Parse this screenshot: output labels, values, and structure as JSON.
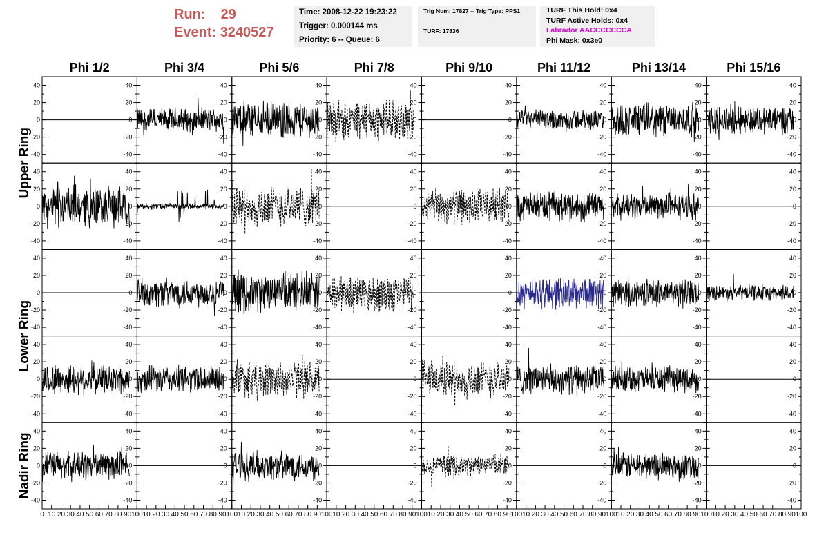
{
  "header": {
    "run_label": "Run:",
    "run_value": "29",
    "event_label": "Event:",
    "event_value": "3240527",
    "time": "Time: 2008-12-22 19:23:22",
    "trigger": "Trigger: 0.000144 ms",
    "priority": "Priority: 6 -- Queue: 6",
    "trig_num": "Trig Num: 17827 -- Trig Type: PPS1",
    "turf": "TURF: 17836",
    "turf_this_hold": "TURF This Hold: 0x4",
    "turf_active_holds": "TURF Active Holds: 0x4",
    "labrador": "Labrador AACCCCCCCA",
    "phi_mask": "Phi Mask: 0x3e0"
  },
  "colors": {
    "run_text": "#c85a5a",
    "labrador_text": "#e000e0",
    "highlight_trace": "#2a2a8c",
    "info_background": "#f0f0f0"
  },
  "chart_data": {
    "type": "line",
    "columns": [
      "Phi 1/2",
      "Phi 3/4",
      "Phi 5/6",
      "Phi 7/8",
      "Phi 9/10",
      "Phi 11/12",
      "Phi 13/14",
      "Phi 15/16"
    ],
    "row_labels": [
      {
        "text": "Upper Ring"
      },
      {
        "text": "Lower Ring"
      },
      {
        "text": "Nadir Ring"
      }
    ],
    "ylim": [
      -50,
      50
    ],
    "y_ticks": [
      -40,
      -20,
      0,
      20,
      40
    ],
    "xlim": [
      0,
      100
    ],
    "x_ticks": [
      0,
      10,
      20,
      30,
      40,
      50,
      60,
      70,
      80,
      90,
      100
    ],
    "grid": false,
    "panels": [
      [
        {
          "style": "flat"
        },
        {
          "style": "solid",
          "amp": 13
        },
        {
          "style": "solid",
          "amp": 20
        },
        {
          "style": "dashed",
          "amp": 22
        },
        {
          "style": "flat"
        },
        {
          "style": "solid",
          "amp": 11
        },
        {
          "style": "solid",
          "amp": 18
        },
        {
          "style": "solid",
          "amp": 16
        }
      ],
      [
        {
          "style": "solid",
          "amp": 22
        },
        {
          "style": "solid",
          "amp": 3
        },
        {
          "style": "dashed",
          "amp": 22
        },
        {
          "style": "flat"
        },
        {
          "style": "dashed",
          "amp": 19
        },
        {
          "style": "solid",
          "amp": 16
        },
        {
          "style": "solid",
          "amp": 14
        },
        {
          "style": "flat"
        }
      ],
      [
        {
          "style": "flat"
        },
        {
          "style": "solid",
          "amp": 16
        },
        {
          "style": "solid",
          "amp": 21
        },
        {
          "style": "dashed",
          "amp": 21
        },
        {
          "style": "flat"
        },
        {
          "style": "solid",
          "amp": 18,
          "highlight": true
        },
        {
          "style": "solid",
          "amp": 15
        },
        {
          "style": "solid",
          "amp": 9
        }
      ],
      [
        {
          "style": "solid",
          "amp": 17
        },
        {
          "style": "solid",
          "amp": 15
        },
        {
          "style": "dashed",
          "amp": 20
        },
        {
          "style": "flat"
        },
        {
          "style": "dashed",
          "amp": 20
        },
        {
          "style": "solid",
          "amp": 16
        },
        {
          "style": "solid",
          "amp": 14
        },
        {
          "style": "flat"
        }
      ],
      [
        {
          "style": "solid",
          "amp": 16
        },
        {
          "style": "flat"
        },
        {
          "style": "solid",
          "amp": 16
        },
        {
          "style": "flat"
        },
        {
          "style": "dashed",
          "amp": 11
        },
        {
          "style": "flat"
        },
        {
          "style": "solid",
          "amp": 15
        },
        {
          "style": "flat"
        }
      ]
    ]
  }
}
